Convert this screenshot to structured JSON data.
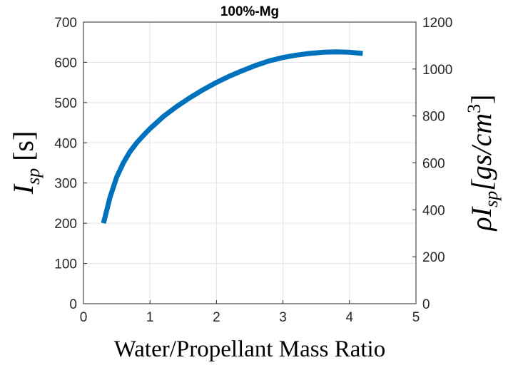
{
  "chart_data": {
    "type": "line",
    "title": "100%-Mg",
    "xlabel": "Water/Propellant Mass Ratio",
    "ylabel_left": {
      "symbol": "I",
      "sub": "sp",
      "unit": "[s]"
    },
    "ylabel_right": {
      "prefix": "ρI",
      "sub": "sp",
      "unit": "[gs/cm",
      "exp": "3",
      "close": "]"
    },
    "xlim": [
      0,
      5
    ],
    "ylim_left": [
      0,
      700
    ],
    "ylim_right": [
      0,
      1200
    ],
    "xticks": [
      "0",
      "1",
      "2",
      "3",
      "4",
      "5"
    ],
    "yticks_left": [
      "0",
      "100",
      "200",
      "300",
      "400",
      "500",
      "600",
      "700"
    ],
    "yticks_right": [
      "0",
      "200",
      "400",
      "600",
      "800",
      "1000",
      "1200"
    ],
    "grid": true,
    "color": "#0072BD",
    "series": [
      {
        "x": [
          0.3,
          0.4,
          0.5,
          0.6,
          0.7,
          0.8,
          0.9,
          1.0,
          1.2,
          1.4,
          1.6,
          1.8,
          2.0,
          2.2,
          2.4,
          2.6,
          2.8,
          3.0,
          3.2,
          3.4,
          3.6,
          3.8,
          4.0,
          4.2
        ],
        "y": [
          200,
          265,
          315,
          350,
          378,
          400,
          418,
          435,
          465,
          490,
          512,
          532,
          550,
          566,
          580,
          593,
          604,
          612,
          618,
          622,
          625,
          626,
          625,
          622
        ]
      }
    ]
  }
}
